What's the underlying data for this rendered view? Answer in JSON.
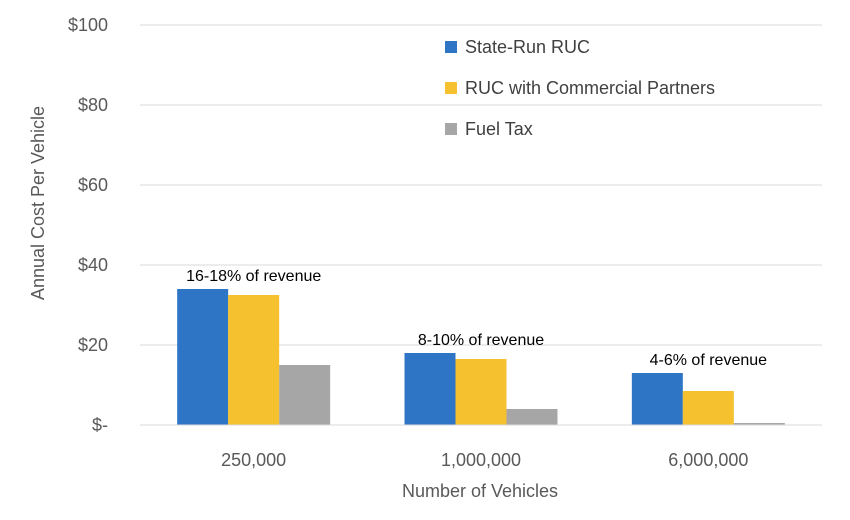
{
  "chart_data": {
    "type": "bar",
    "title": "",
    "xlabel": "Number of Vehicles",
    "ylabel": "Annual Cost Per Vehicle",
    "categories": [
      "250,000",
      "1,000,000",
      "6,000,000"
    ],
    "series": [
      {
        "name": "State-Run RUC",
        "color": "#2E75C6",
        "values": [
          34,
          18,
          13
        ]
      },
      {
        "name": "RUC with Commercial Partners",
        "color": "#F5C12E",
        "values": [
          32.5,
          16.5,
          8.5
        ]
      },
      {
        "name": "Fuel Tax",
        "color": "#A6A6A6",
        "values": [
          15,
          4,
          0.5
        ]
      }
    ],
    "ylim": [
      0,
      100
    ],
    "yticks": [
      0,
      20,
      40,
      60,
      80,
      100
    ],
    "ytick_labels": [
      "$-",
      "$20",
      "$40",
      "$60",
      "$80",
      "$100"
    ],
    "grid": true,
    "legend_position": "top-right",
    "annotations": [
      {
        "category": "250,000",
        "text": "16-18% of revenue"
      },
      {
        "category": "1,000,000",
        "text": "8-10% of revenue"
      },
      {
        "category": "6,000,000",
        "text": "4-6% of revenue"
      }
    ]
  }
}
